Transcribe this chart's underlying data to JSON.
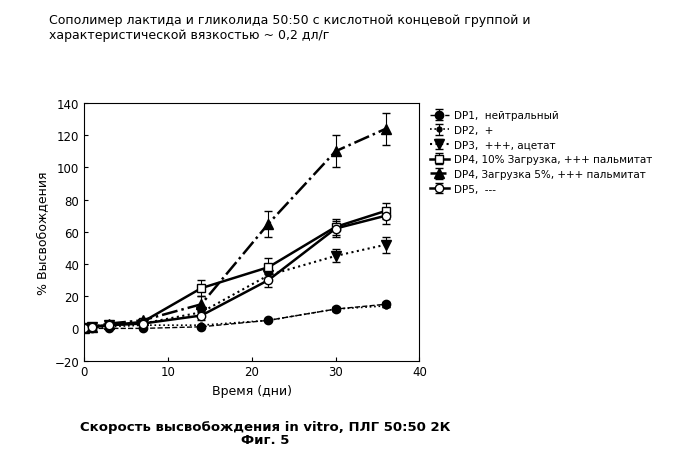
{
  "title": "Сополимер лактида и гликолида 50:50 с кислотной концевой группой и\nхарактеристической вязкостью ~ 0,2 дл/г",
  "xlabel": "Время (дни)",
  "ylabel": "% Высвобождения",
  "bottom_title_line1": "Скорость высвобождения in vitro, ПЛГ 50:50 2К",
  "bottom_title_line2": "Фиг. 5",
  "xlim": [
    0,
    40
  ],
  "ylim": [
    -20,
    140
  ],
  "yticks": [
    -20,
    0,
    20,
    40,
    60,
    80,
    100,
    120,
    140
  ],
  "xticks": [
    0,
    10,
    20,
    30,
    40
  ],
  "series": [
    {
      "label": "DP1,  нейтральный",
      "x": [
        0,
        1,
        3,
        7,
        14,
        22,
        30,
        36
      ],
      "y": [
        0,
        0,
        0,
        0,
        1,
        5,
        12,
        15
      ],
      "yerr": [
        0,
        0,
        0,
        0,
        0.5,
        0.5,
        1,
        1.5
      ],
      "marker": "o",
      "marker_fill": "black",
      "linestyle": "--",
      "linewidth": 1.0,
      "markersize": 6,
      "color": "black"
    },
    {
      "label": "DP2,  +",
      "x": [
        0,
        1,
        3,
        7,
        14,
        22,
        30,
        36
      ],
      "y": [
        0,
        0.5,
        1,
        2,
        2,
        5,
        12,
        14
      ],
      "yerr": [
        0,
        0,
        0,
        0,
        0,
        0.5,
        1,
        1
      ],
      "marker": ".",
      "marker_fill": "black",
      "linestyle": ":",
      "linewidth": 1.2,
      "markersize": 7,
      "color": "black"
    },
    {
      "label": "DP3,  +++, ацетат",
      "x": [
        0,
        1,
        3,
        7,
        14,
        22,
        30,
        36
      ],
      "y": [
        0,
        1,
        2,
        3,
        10,
        33,
        45,
        52
      ],
      "yerr": [
        0,
        0,
        0,
        0,
        2,
        3,
        4,
        5
      ],
      "marker": "v",
      "marker_fill": "black",
      "linestyle": ":",
      "linewidth": 1.5,
      "markersize": 7,
      "color": "black"
    },
    {
      "label": "DP4, 10% Загрузка, +++ пальмитат",
      "x": [
        0,
        1,
        3,
        7,
        14,
        22,
        30,
        36
      ],
      "y": [
        0,
        1,
        2,
        4,
        25,
        38,
        63,
        73
      ],
      "yerr": [
        0,
        0,
        0,
        1,
        5,
        6,
        5,
        5
      ],
      "marker": "s",
      "marker_fill": "white",
      "linestyle": "-",
      "linewidth": 1.8,
      "markersize": 6,
      "color": "black"
    },
    {
      "label": "DP4, Загрузка 5%, +++ пальмитат",
      "x": [
        0,
        1,
        3,
        7,
        14,
        22,
        30,
        36
      ],
      "y": [
        0,
        1,
        3,
        5,
        15,
        65,
        110,
        124
      ],
      "yerr": [
        0,
        0,
        0,
        1,
        5,
        8,
        10,
        10
      ],
      "marker": "^",
      "marker_fill": "black",
      "linestyle": "-.",
      "linewidth": 1.8,
      "markersize": 7,
      "color": "black"
    },
    {
      "label": "DP5,  ---",
      "x": [
        0,
        1,
        3,
        7,
        14,
        22,
        30,
        36
      ],
      "y": [
        0,
        1,
        2,
        3,
        8,
        30,
        62,
        70
      ],
      "yerr": [
        0,
        0,
        0,
        0,
        3,
        4,
        5,
        5
      ],
      "marker": "o",
      "marker_fill": "white",
      "linestyle": "-",
      "linewidth": 1.8,
      "markersize": 6,
      "color": "black"
    }
  ]
}
